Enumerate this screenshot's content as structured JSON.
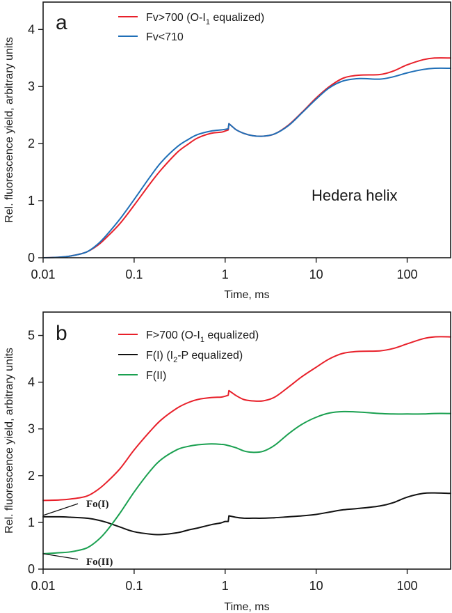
{
  "chart_data": [
    {
      "type": "line",
      "panel_label": "a",
      "annotation": "Hedera helix",
      "xlabel": "Time, ms",
      "ylabel": "Rel. fluorescence yield, arbitrary units",
      "xscale": "log",
      "xlim": [
        0.01,
        300
      ],
      "ylim": [
        0,
        4.48
      ],
      "xticks": [
        0.01,
        0.1,
        1,
        10,
        100
      ],
      "xtick_labels": [
        "0.01",
        "0.1",
        "1",
        "10",
        "100"
      ],
      "yticks": [
        0,
        1,
        2,
        3,
        4
      ],
      "ytick_labels": [
        "0",
        "1",
        "2",
        "3",
        "4"
      ],
      "legend_position": "top-center",
      "series": [
        {
          "name": "Fv>700 (O-I1 equalized)",
          "label_main": "Fv>700 (O-I",
          "label_sub": "1",
          "label_tail": " equalized)",
          "color": "#e8202a",
          "x": [
            0.01,
            0.015,
            0.02,
            0.03,
            0.04,
            0.05,
            0.07,
            0.1,
            0.15,
            0.2,
            0.3,
            0.4,
            0.5,
            0.7,
            0.9,
            1.0,
            1.08,
            1.1,
            1.3,
            1.6,
            2.0,
            2.6,
            3.5,
            5,
            7,
            10,
            14,
            20,
            30,
            50,
            70,
            100,
            150,
            200,
            300
          ],
          "y": [
            0.0,
            0.01,
            0.03,
            0.1,
            0.22,
            0.36,
            0.6,
            0.92,
            1.3,
            1.55,
            1.85,
            2.0,
            2.1,
            2.18,
            2.2,
            2.22,
            2.24,
            2.35,
            2.25,
            2.18,
            2.14,
            2.13,
            2.17,
            2.33,
            2.55,
            2.8,
            3.0,
            3.15,
            3.2,
            3.21,
            3.27,
            3.38,
            3.47,
            3.5,
            3.5
          ]
        },
        {
          "name": "Fv<710",
          "label_main": "Fv<710",
          "label_sub": "",
          "label_tail": "",
          "color": "#1f6fb7",
          "x": [
            0.01,
            0.015,
            0.02,
            0.03,
            0.04,
            0.05,
            0.07,
            0.1,
            0.15,
            0.2,
            0.3,
            0.4,
            0.5,
            0.7,
            0.9,
            1.0,
            1.08,
            1.1,
            1.3,
            1.6,
            2.0,
            2.6,
            3.5,
            5,
            7,
            10,
            14,
            20,
            30,
            50,
            70,
            100,
            150,
            200,
            300
          ],
          "y": [
            0.0,
            0.01,
            0.03,
            0.1,
            0.24,
            0.4,
            0.68,
            1.02,
            1.42,
            1.68,
            1.95,
            2.08,
            2.16,
            2.22,
            2.24,
            2.25,
            2.26,
            2.35,
            2.25,
            2.18,
            2.14,
            2.13,
            2.17,
            2.32,
            2.54,
            2.78,
            2.98,
            3.1,
            3.14,
            3.13,
            3.17,
            3.24,
            3.3,
            3.32,
            3.32
          ]
        }
      ]
    },
    {
      "type": "line",
      "panel_label": "b",
      "xlabel": "Time, ms",
      "ylabel": "Rel. fluorescence yield, arbitrary units",
      "xscale": "log",
      "xlim": [
        0.01,
        300
      ],
      "ylim": [
        0,
        5.5
      ],
      "xticks": [
        0.01,
        0.1,
        1,
        10,
        100
      ],
      "xtick_labels": [
        "0.01",
        "0.1",
        "1",
        "10",
        "100"
      ],
      "yticks": [
        0,
        1,
        2,
        3,
        4,
        5
      ],
      "ytick_labels": [
        "0",
        "1",
        "2",
        "3",
        "4",
        "5"
      ],
      "legend_position": "top-center",
      "annotations": [
        {
          "text": "Fo(I)",
          "x": 0.01,
          "y": 1.15
        },
        {
          "text": "Fo(II)",
          "x": 0.01,
          "y": 0.33
        }
      ],
      "series": [
        {
          "name": "F>700 (O-I1 equalized)",
          "label_main": "F>700 (O-I",
          "label_sub": "1",
          "label_tail": " equalized)",
          "color": "#e8202a",
          "x": [
            0.01,
            0.015,
            0.02,
            0.03,
            0.04,
            0.05,
            0.07,
            0.1,
            0.15,
            0.2,
            0.3,
            0.4,
            0.5,
            0.7,
            0.9,
            1.0,
            1.08,
            1.1,
            1.3,
            1.6,
            2.0,
            2.6,
            3.5,
            5,
            7,
            10,
            14,
            20,
            30,
            50,
            70,
            100,
            150,
            200,
            300
          ],
          "y": [
            1.47,
            1.48,
            1.5,
            1.56,
            1.7,
            1.86,
            2.15,
            2.55,
            2.95,
            3.2,
            3.45,
            3.57,
            3.63,
            3.67,
            3.68,
            3.7,
            3.72,
            3.82,
            3.72,
            3.63,
            3.6,
            3.6,
            3.68,
            3.9,
            4.12,
            4.32,
            4.5,
            4.62,
            4.66,
            4.67,
            4.72,
            4.82,
            4.93,
            4.97,
            4.97
          ]
        },
        {
          "name": "F(I) (I2-P equalized)",
          "label_main": "F(I) (I",
          "label_sub": "2",
          "label_tail": "-P equalized)",
          "color": "#111111",
          "x": [
            0.01,
            0.015,
            0.02,
            0.03,
            0.04,
            0.05,
            0.07,
            0.1,
            0.15,
            0.2,
            0.3,
            0.4,
            0.5,
            0.7,
            0.9,
            1.0,
            1.08,
            1.1,
            1.3,
            1.6,
            2.0,
            2.6,
            3.5,
            5,
            7,
            10,
            14,
            20,
            30,
            50,
            70,
            100,
            150,
            200,
            300
          ],
          "y": [
            1.12,
            1.12,
            1.11,
            1.09,
            1.05,
            1.0,
            0.9,
            0.8,
            0.75,
            0.74,
            0.78,
            0.84,
            0.88,
            0.95,
            0.99,
            1.02,
            1.02,
            1.14,
            1.11,
            1.09,
            1.09,
            1.09,
            1.1,
            1.12,
            1.14,
            1.17,
            1.22,
            1.27,
            1.3,
            1.35,
            1.42,
            1.54,
            1.62,
            1.63,
            1.62
          ]
        },
        {
          "name": "F(II)",
          "label_main": "F(II)",
          "label_sub": "",
          "label_tail": "",
          "color": "#1aa050",
          "x": [
            0.01,
            0.015,
            0.02,
            0.03,
            0.04,
            0.05,
            0.07,
            0.1,
            0.15,
            0.2,
            0.3,
            0.4,
            0.5,
            0.7,
            0.9,
            1.0,
            1.3,
            1.6,
            2.0,
            2.6,
            3.5,
            5,
            7,
            10,
            14,
            20,
            30,
            50,
            70,
            100,
            150,
            200,
            300
          ],
          "y": [
            0.33,
            0.35,
            0.37,
            0.45,
            0.62,
            0.82,
            1.2,
            1.65,
            2.1,
            2.35,
            2.56,
            2.63,
            2.66,
            2.68,
            2.67,
            2.66,
            2.6,
            2.53,
            2.5,
            2.52,
            2.65,
            2.9,
            3.1,
            3.25,
            3.34,
            3.37,
            3.36,
            3.33,
            3.32,
            3.32,
            3.32,
            3.33,
            3.33
          ]
        }
      ]
    }
  ]
}
